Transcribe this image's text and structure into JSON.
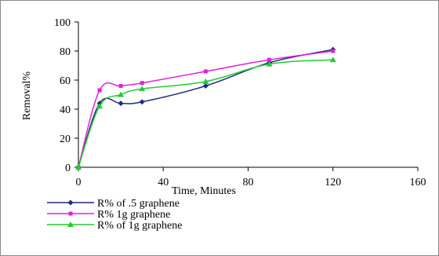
{
  "chart_data": {
    "type": "line",
    "title": "",
    "xlabel": "Time, Minutes",
    "ylabel": "Removal%",
    "xlim": [
      0,
      160
    ],
    "ylim": [
      0,
      100
    ],
    "xticks": [
      "0",
      "40",
      "80",
      "120",
      "160"
    ],
    "yticks": [
      "0",
      "20",
      "40",
      "60",
      "80",
      "100"
    ],
    "grid": false,
    "legend_position": "bottom-left",
    "series": [
      {
        "name": "R% of .5 graphene",
        "color": "#1f2a7a",
        "marker": "diamond",
        "x": [
          0,
          10,
          20,
          30,
          60,
          90,
          120
        ],
        "y": [
          0,
          44,
          44,
          45,
          56,
          72,
          81
        ]
      },
      {
        "name": "R% 1g graphene",
        "color": "#e020d8",
        "marker": "square",
        "x": [
          0,
          10,
          20,
          30,
          60,
          90,
          120
        ],
        "y": [
          0,
          53,
          56,
          58,
          66,
          74,
          80
        ]
      },
      {
        "name": "R% of 1g graphene",
        "color": "#22cc33",
        "marker": "triangle",
        "x": [
          0,
          10,
          20,
          30,
          60,
          90,
          120
        ],
        "y": [
          0,
          42,
          50,
          54,
          59,
          71,
          74
        ]
      }
    ]
  }
}
